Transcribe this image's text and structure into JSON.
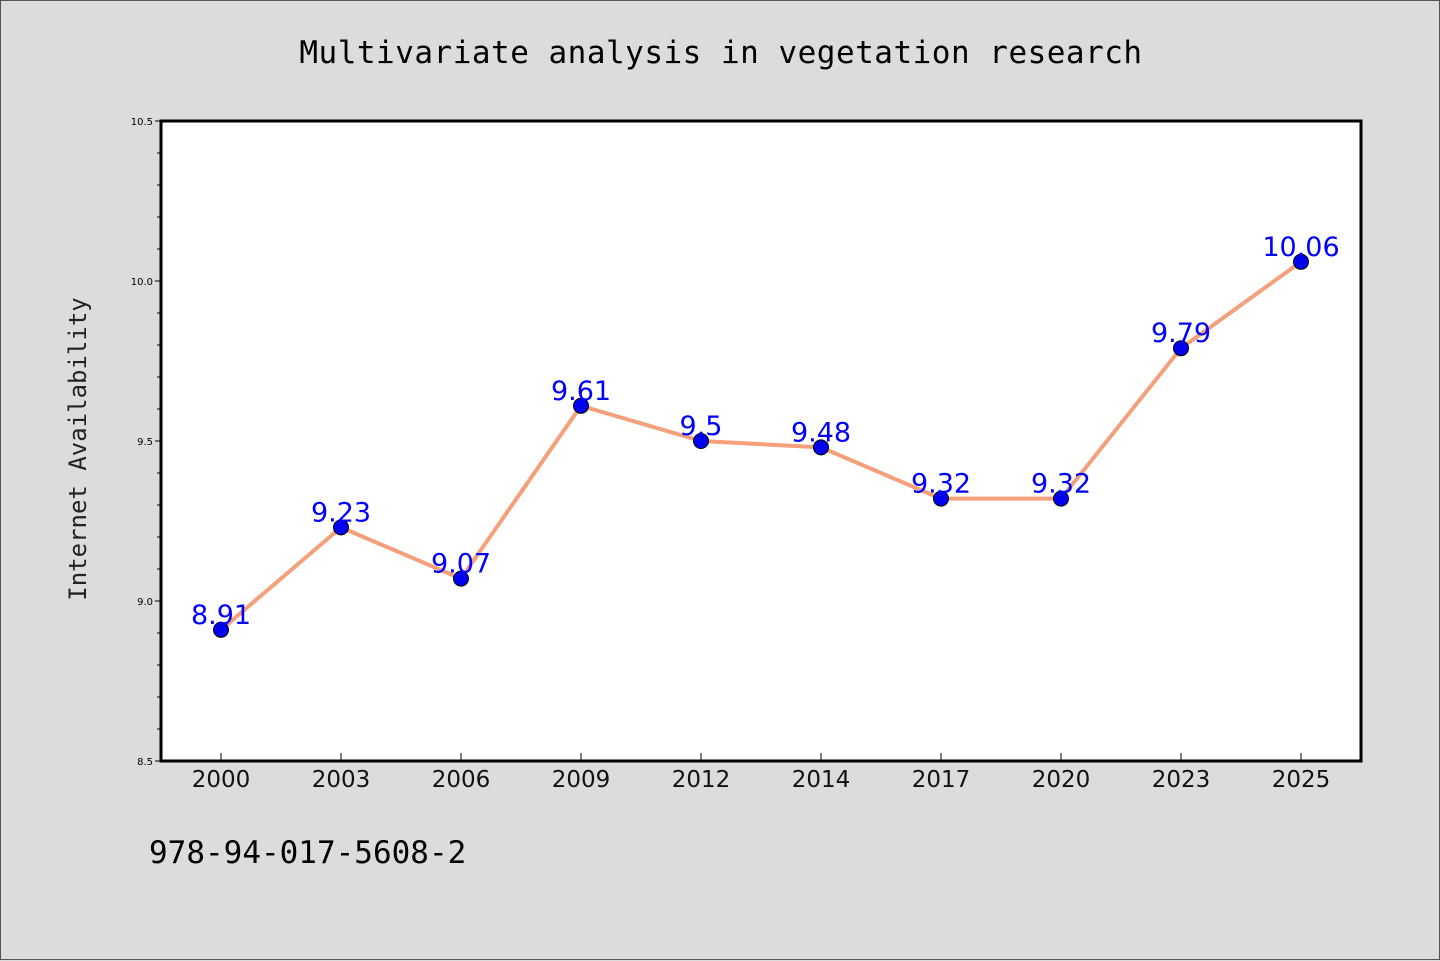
{
  "chart_data": {
    "type": "line",
    "title": "Multivariate analysis in vegetation research",
    "xlabel": "",
    "ylabel": "Internet Availability",
    "categories": [
      "2000",
      "2003",
      "2006",
      "2009",
      "2012",
      "2014",
      "2017",
      "2020",
      "2023",
      "2025"
    ],
    "series": [
      {
        "values": [
          8.91,
          9.23,
          9.07,
          9.61,
          9.5,
          9.48,
          9.32,
          9.32,
          9.79,
          10.06
        ],
        "labels": [
          "8.91",
          "9.23",
          "9.07",
          "9.61",
          "9.5",
          "9.48",
          "9.32",
          "9.32",
          "9.79",
          "10.06"
        ]
      }
    ],
    "ylim": [
      8.5,
      10.5
    ],
    "yticks": [
      "8.5",
      "9.0",
      "9.5",
      "10.0",
      "10.5"
    ],
    "grid": false,
    "colors": {
      "line": "#f4a07a",
      "marker": "#0000ee",
      "label": "#0000ff",
      "plot_bg": "#ffffff",
      "page_bg": "#dcdcdc"
    }
  },
  "footer": {
    "code": "978-94-017-5608-2"
  }
}
